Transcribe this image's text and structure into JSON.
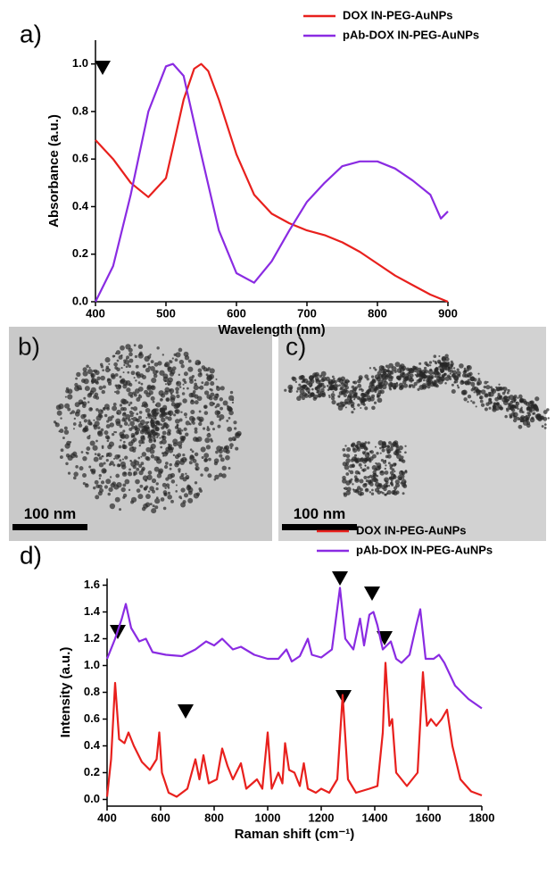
{
  "panel_labels": [
    "a)",
    "b)",
    "c)",
    "d)"
  ],
  "images": [
    {
      "scale_bar": "100 nm"
    },
    {
      "scale_bar": "100 nm"
    }
  ],
  "chart_data": [
    {
      "type": "line",
      "x_label": "Wavelength (nm)",
      "y_label": "Absorbance (a.u.)",
      "xlim": [
        400,
        900
      ],
      "xticks": [
        400,
        500,
        600,
        700,
        800,
        900
      ],
      "ylim": [
        0,
        1.1
      ],
      "yticks": [
        {
          "value": 0,
          "label": "0.0"
        },
        0.2,
        0.4,
        0.6,
        0.8,
        {
          "value": 1,
          "label": "1.0"
        }
      ],
      "legend": "top-right",
      "series": [
        {
          "name": "DOX IN-PEG-AuNPs",
          "color": "#e8201d",
          "x": [
            400,
            425,
            450,
            475,
            500,
            510,
            525,
            540,
            550,
            560,
            575,
            600,
            625,
            650,
            675,
            700,
            725,
            750,
            775,
            800,
            825,
            850,
            875,
            900
          ],
          "values": [
            0.68,
            0.6,
            0.5,
            0.44,
            0.52,
            0.65,
            0.85,
            0.98,
            1.0,
            0.97,
            0.85,
            0.62,
            0.45,
            0.37,
            0.33,
            0.3,
            0.28,
            0.25,
            0.21,
            0.16,
            0.11,
            0.07,
            0.03,
            0.0
          ]
        },
        {
          "name": "pAb-DOX IN-PEG-AuNPs",
          "color": "#8a2be2",
          "x": [
            400,
            425,
            450,
            475,
            500,
            510,
            525,
            550,
            575,
            600,
            625,
            650,
            675,
            700,
            725,
            750,
            775,
            800,
            825,
            850,
            875,
            890,
            900
          ],
          "values": [
            0.0,
            0.15,
            0.45,
            0.8,
            0.99,
            1.0,
            0.95,
            0.62,
            0.3,
            0.12,
            0.08,
            0.17,
            0.3,
            0.42,
            0.5,
            0.57,
            0.59,
            0.59,
            0.56,
            0.51,
            0.45,
            0.35,
            0.38
          ]
        }
      ]
    },
    {
      "type": "line",
      "x_label": "Raman shift (cm⁻¹)",
      "y_label": "Intensity (a.u.)",
      "xlim": [
        400,
        1800
      ],
      "xticks": [
        400,
        600,
        800,
        1000,
        1200,
        1400,
        1600,
        1800
      ],
      "ylim": [
        -0.05,
        1.65
      ],
      "yticks": [
        {
          "value": 0,
          "label": "0.0"
        },
        0.2,
        0.4,
        0.6,
        0.8,
        {
          "value": 1,
          "label": "1.0"
        },
        1.2,
        1.4,
        1.6
      ],
      "legend": "top-right",
      "series": [
        {
          "name": "DOX IN-PEG-AuNPs",
          "color": "#e8201d",
          "x": [
            400,
            415,
            430,
            445,
            465,
            480,
            500,
            530,
            560,
            585,
            595,
            605,
            630,
            660,
            700,
            730,
            745,
            760,
            780,
            810,
            830,
            850,
            870,
            900,
            920,
            960,
            980,
            1000,
            1015,
            1040,
            1055,
            1065,
            1080,
            1100,
            1120,
            1135,
            1150,
            1180,
            1200,
            1230,
            1260,
            1280,
            1300,
            1330,
            1380,
            1410,
            1430,
            1440,
            1455,
            1465,
            1480,
            1520,
            1560,
            1580,
            1595,
            1610,
            1630,
            1650,
            1670,
            1690,
            1720,
            1760,
            1800
          ],
          "values": [
            0.02,
            0.3,
            0.87,
            0.45,
            0.42,
            0.5,
            0.4,
            0.28,
            0.22,
            0.3,
            0.5,
            0.2,
            0.05,
            0.02,
            0.08,
            0.3,
            0.15,
            0.33,
            0.12,
            0.15,
            0.38,
            0.25,
            0.15,
            0.27,
            0.08,
            0.15,
            0.08,
            0.5,
            0.08,
            0.2,
            0.12,
            0.42,
            0.22,
            0.2,
            0.1,
            0.27,
            0.08,
            0.05,
            0.08,
            0.05,
            0.15,
            0.78,
            0.15,
            0.05,
            0.08,
            0.1,
            0.5,
            1.02,
            0.55,
            0.6,
            0.2,
            0.1,
            0.2,
            0.95,
            0.55,
            0.6,
            0.55,
            0.6,
            0.67,
            0.4,
            0.15,
            0.06,
            0.03
          ]
        },
        {
          "name": "pAb-DOX IN-PEG-AuNPs",
          "color": "#8a2be2",
          "x": [
            400,
            430,
            455,
            470,
            490,
            520,
            545,
            570,
            620,
            680,
            730,
            770,
            800,
            830,
            870,
            900,
            950,
            1000,
            1040,
            1070,
            1090,
            1120,
            1150,
            1165,
            1200,
            1240,
            1270,
            1290,
            1320,
            1345,
            1360,
            1380,
            1395,
            1410,
            1430,
            1460,
            1480,
            1500,
            1530,
            1555,
            1570,
            1590,
            1605,
            1620,
            1640,
            1660,
            1700,
            1750,
            1800
          ],
          "values": [
            1.05,
            1.2,
            1.35,
            1.46,
            1.28,
            1.18,
            1.2,
            1.1,
            1.08,
            1.07,
            1.12,
            1.18,
            1.15,
            1.2,
            1.12,
            1.14,
            1.08,
            1.05,
            1.05,
            1.12,
            1.03,
            1.07,
            1.2,
            1.08,
            1.06,
            1.12,
            1.58,
            1.2,
            1.12,
            1.35,
            1.15,
            1.38,
            1.4,
            1.3,
            1.12,
            1.18,
            1.05,
            1.02,
            1.08,
            1.3,
            1.42,
            1.05,
            1.05,
            1.05,
            1.08,
            1.02,
            0.85,
            0.75,
            0.68
          ]
        }
      ]
    }
  ]
}
